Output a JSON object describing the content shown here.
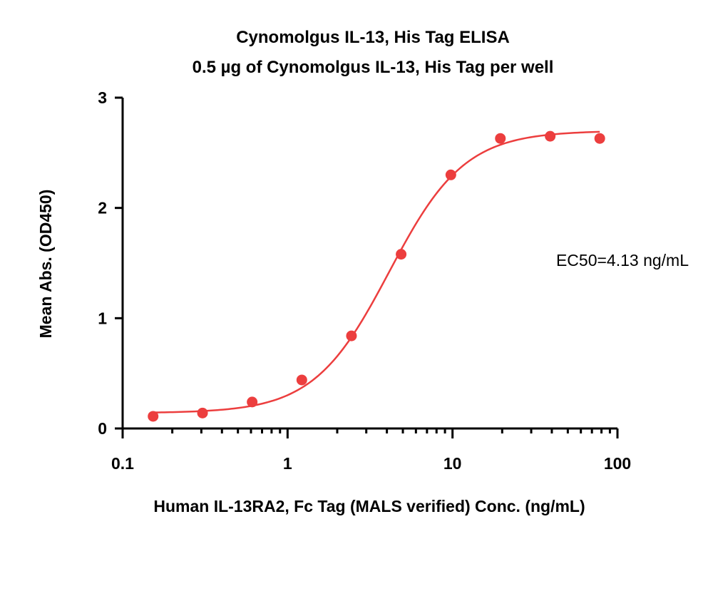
{
  "chart_data": {
    "type": "scatter",
    "title": "Cynomolgus IL-13, His Tag ELISA",
    "subtitle": "0.5 µg of Cynomolgus IL-13, His Tag per well",
    "xlabel": "Human IL-13RA2, Fc Tag (MALS verified) Conc. (ng/mL)",
    "ylabel": "Mean Abs. (OD450)",
    "x_scale": "log",
    "xlim": [
      0.1,
      100
    ],
    "ylim": [
      0,
      3
    ],
    "x_ticks": [
      0.1,
      1,
      10,
      100
    ],
    "x_tick_labels": [
      "0.1",
      "1",
      "10",
      "100"
    ],
    "y_ticks": [
      0,
      1,
      2,
      3
    ],
    "y_tick_labels": [
      "0",
      "1",
      "2",
      "3"
    ],
    "grid": false,
    "annotation": "EC50=4.13 ng/mL",
    "series": [
      {
        "x": [
          0.153,
          0.305,
          0.61,
          1.22,
          2.44,
          4.88,
          9.77,
          19.5,
          39.1,
          78.1
        ],
        "y": [
          0.11,
          0.14,
          0.24,
          0.44,
          0.84,
          1.58,
          2.3,
          2.63,
          2.65,
          2.63
        ],
        "color": "#ec3e3e",
        "fit": "4PL",
        "fit_params": {
          "bottom": 0.14,
          "top": 2.7,
          "ec50": 4.13,
          "hill": 1.9
        }
      }
    ]
  }
}
